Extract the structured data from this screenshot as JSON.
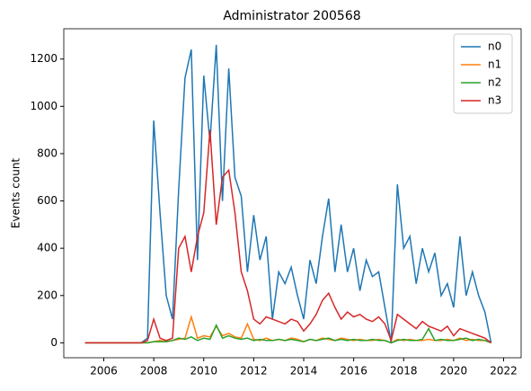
{
  "chart_data": {
    "type": "line",
    "title": "Administrator 200568",
    "ylabel": "Events count",
    "x": [
      2005.25,
      2005.5,
      2005.75,
      2006,
      2006.25,
      2006.5,
      2006.75,
      2007,
      2007.25,
      2007.5,
      2007.75,
      2008,
      2008.25,
      2008.5,
      2008.75,
      2009,
      2009.25,
      2009.5,
      2009.75,
      2010,
      2010.25,
      2010.5,
      2010.75,
      2011,
      2011.25,
      2011.5,
      2011.75,
      2012,
      2012.25,
      2012.5,
      2012.75,
      2013,
      2013.25,
      2013.5,
      2013.75,
      2014,
      2014.25,
      2014.5,
      2014.75,
      2015,
      2015.25,
      2015.5,
      2015.75,
      2016,
      2016.25,
      2016.5,
      2016.75,
      2017,
      2017.25,
      2017.5,
      2017.75,
      2018,
      2018.25,
      2018.5,
      2018.75,
      2019,
      2019.25,
      2019.5,
      2019.75,
      2020,
      2020.25,
      2020.5,
      2020.75,
      2021,
      2021.25,
      2021.5
    ],
    "series": [
      {
        "name": "n0",
        "color": "#1f77b4",
        "values": [
          0,
          0,
          0,
          0,
          0,
          0,
          0,
          0,
          0,
          0,
          20,
          940,
          550,
          200,
          100,
          650,
          1120,
          1240,
          350,
          1130,
          850,
          1260,
          600,
          1160,
          700,
          620,
          300,
          540,
          350,
          450,
          100,
          300,
          250,
          320,
          200,
          100,
          350,
          250,
          450,
          610,
          300,
          500,
          300,
          400,
          220,
          350,
          280,
          300,
          150,
          0,
          670,
          400,
          450,
          250,
          400,
          300,
          380,
          200,
          250,
          150,
          450,
          200,
          300,
          200,
          130,
          0
        ]
      },
      {
        "name": "n1",
        "color": "#ff7f0e",
        "values": [
          0,
          0,
          0,
          0,
          0,
          0,
          0,
          0,
          0,
          0,
          0,
          5,
          10,
          5,
          10,
          15,
          20,
          110,
          20,
          30,
          25,
          70,
          30,
          40,
          25,
          20,
          80,
          15,
          10,
          20,
          10,
          15,
          10,
          20,
          15,
          5,
          15,
          10,
          20,
          15,
          10,
          20,
          15,
          10,
          15,
          10,
          10,
          15,
          10,
          0,
          15,
          10,
          15,
          10,
          10,
          15,
          10,
          10,
          15,
          10,
          20,
          10,
          15,
          10,
          10,
          0
        ]
      },
      {
        "name": "n2",
        "color": "#2ca02c",
        "values": [
          0,
          0,
          0,
          0,
          0,
          0,
          0,
          0,
          0,
          0,
          0,
          5,
          5,
          5,
          10,
          20,
          15,
          25,
          10,
          20,
          15,
          75,
          20,
          30,
          20,
          15,
          20,
          10,
          15,
          10,
          10,
          15,
          10,
          15,
          10,
          5,
          15,
          10,
          15,
          20,
          10,
          15,
          10,
          15,
          10,
          10,
          15,
          10,
          10,
          0,
          10,
          15,
          10,
          10,
          15,
          60,
          10,
          15,
          10,
          10,
          15,
          20,
          10,
          15,
          10,
          0
        ]
      },
      {
        "name": "n3",
        "color": "#d62728",
        "values": [
          0,
          0,
          0,
          0,
          0,
          0,
          0,
          0,
          0,
          0,
          10,
          100,
          20,
          10,
          20,
          400,
          450,
          300,
          450,
          550,
          900,
          500,
          700,
          730,
          550,
          300,
          220,
          100,
          80,
          110,
          100,
          90,
          80,
          100,
          90,
          50,
          80,
          120,
          180,
          210,
          150,
          100,
          130,
          110,
          120,
          100,
          90,
          110,
          80,
          10,
          120,
          100,
          80,
          60,
          90,
          70,
          60,
          50,
          70,
          30,
          60,
          50,
          40,
          30,
          20,
          0
        ]
      }
    ],
    "xlim": [
      2004.4,
      2022.7
    ],
    "xticks": [
      2006,
      2008,
      2010,
      2012,
      2014,
      2016,
      2018,
      2020,
      2022
    ],
    "ylim": [
      -63,
      1328
    ],
    "yticks": [
      0,
      200,
      400,
      600,
      800,
      1000,
      1200
    ],
    "legend": "upper right"
  }
}
